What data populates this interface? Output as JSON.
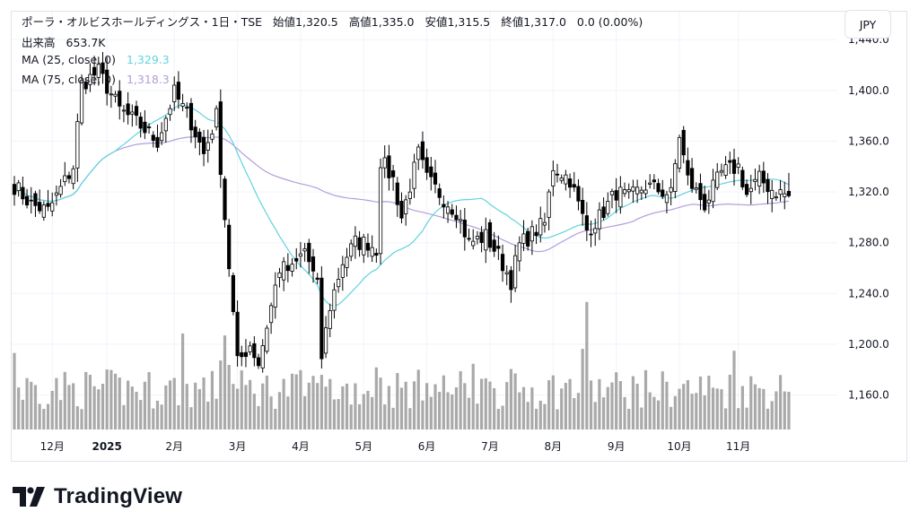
{
  "legend": {
    "title": "ポーラ・オルビスホールディングス・1日・TSE",
    "open_label": "始値",
    "open": "1,320.5",
    "high_label": "高値",
    "high": "1,335.0",
    "low_label": "安値",
    "low": "1,315.5",
    "close_label": "終値",
    "close": "1,317.0",
    "change": "0.0 (0.00%)",
    "volume_label": "出来高",
    "volume_value": "653.7K",
    "ma25_label": "MA (25, close, 0)",
    "ma25_value": "1,329.3",
    "ma75_label": "MA (75, close, 0)",
    "ma75_value": "1,318.3"
  },
  "currency": "JPY",
  "brand": "TradingView",
  "colors": {
    "ma25": "#5fd3e0",
    "ma75": "#b39ddb",
    "up": "#ffffff",
    "down": "#000000",
    "volume": "#a9a9a9"
  },
  "chart_data": {
    "type": "candlestick",
    "title": "ポーラ・オルビスホールディングス・1日・TSE",
    "ylim": [
      1130,
      1455
    ],
    "y_ticks": [
      "1,160.0",
      "1,200.0",
      "1,240.0",
      "1,280.0",
      "1,320.0",
      "1,360.0",
      "1,400.0",
      "1,440.0"
    ],
    "y_tick_values": [
      1160,
      1200,
      1240,
      1280,
      1320,
      1360,
      1400,
      1440
    ],
    "x_tick_labels": [
      "12月",
      "2025",
      "2月",
      "3月",
      "4月",
      "5月",
      "6月",
      "7月",
      "8月",
      "9月",
      "10月",
      "11月"
    ],
    "x_tick_index": [
      9,
      22,
      38,
      53,
      68,
      83,
      98,
      113,
      128,
      143,
      158,
      172
    ],
    "n_bars": 185,
    "anchors_index": [
      0,
      4,
      8,
      14,
      16,
      20,
      25,
      30,
      34,
      38,
      42,
      45,
      48,
      50,
      53,
      56,
      58,
      63,
      66,
      69,
      72,
      73,
      75,
      78,
      81,
      84,
      86,
      87,
      90,
      92,
      96,
      98,
      102,
      105,
      108,
      112,
      115,
      118,
      120,
      124,
      126,
      128,
      132,
      136,
      139,
      141,
      143,
      146,
      150,
      156,
      158,
      160,
      164,
      168,
      172,
      174,
      177,
      180,
      184
    ],
    "anchors_close": [
      1325,
      1310,
      1305,
      1340,
      1405,
      1415,
      1385,
      1372,
      1360,
      1398,
      1375,
      1350,
      1380,
      1300,
      1185,
      1200,
      1185,
      1260,
      1258,
      1275,
      1245,
      1190,
      1230,
      1265,
      1280,
      1280,
      1275,
      1345,
      1330,
      1300,
      1350,
      1330,
      1315,
      1305,
      1280,
      1285,
      1270,
      1250,
      1278,
      1290,
      1295,
      1340,
      1330,
      1290,
      1300,
      1310,
      1320,
      1315,
      1325,
      1318,
      1365,
      1330,
      1310,
      1335,
      1340,
      1318,
      1330,
      1322,
      1317
    ],
    "volume_ylim": [
      0,
      2800000
    ],
    "last": {
      "open": 1320.5,
      "high": 1335.0,
      "low": 1315.5,
      "close": 1317.0,
      "volume": 653700
    }
  }
}
